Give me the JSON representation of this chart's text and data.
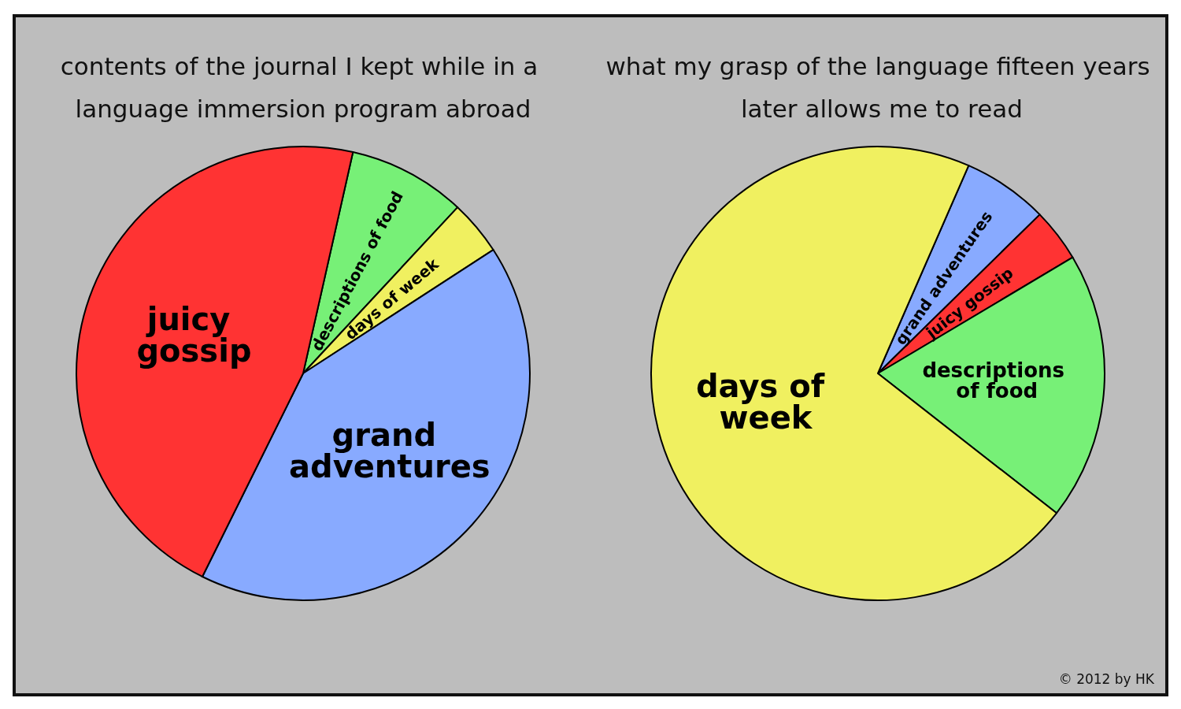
{
  "chart_data": [
    {
      "type": "pie",
      "title": "contents of the journal I kept while in a language immersion program abroad",
      "categories": [
        "descriptions of food",
        "days of week",
        "grand adventures",
        "juicy gossip"
      ],
      "values": [
        8.4,
        3.9,
        41.5,
        46.2
      ],
      "colors": [
        "#77f077",
        "#f0f060",
        "#88aaff",
        "#ff3333"
      ]
    },
    {
      "type": "pie",
      "title": "what my grasp of the language fifteen years later allows me to read",
      "categories": [
        "grand adventures",
        "juicy gossip",
        "descriptions of food",
        "days of week"
      ],
      "values": [
        6.1,
        3.8,
        19.1,
        71.0
      ],
      "colors": [
        "#88aaff",
        "#ff3333",
        "#77f077",
        "#f0f060"
      ],
      "annotations": [
        "© 2012 by HK"
      ]
    }
  ]
}
